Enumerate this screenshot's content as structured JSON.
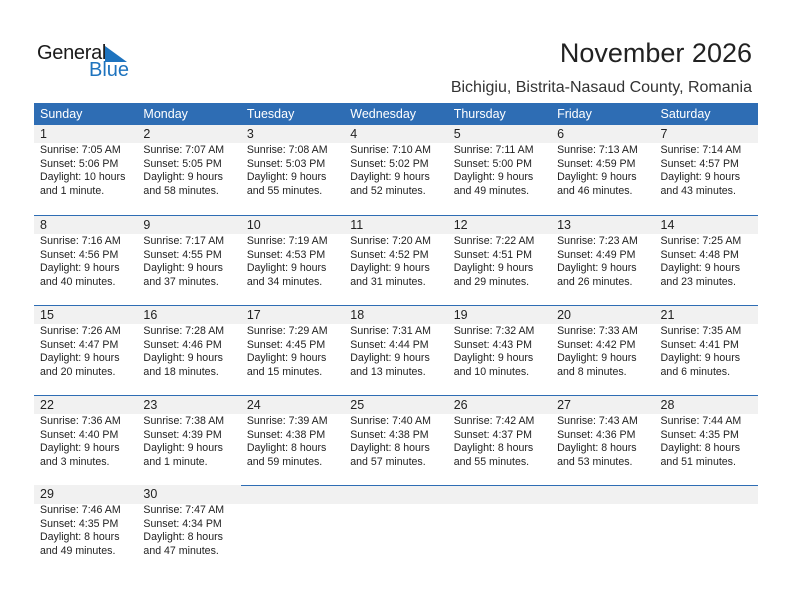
{
  "logo": {
    "text_general": "General",
    "text_blue": "Blue"
  },
  "header": {
    "title": "November 2026",
    "location": "Bichigiu, Bistrita-Nasaud County, Romania"
  },
  "colors": {
    "accent": "#2e6db4",
    "day_band": "#f1f1f1"
  },
  "weekdays": [
    "Sunday",
    "Monday",
    "Tuesday",
    "Wednesday",
    "Thursday",
    "Friday",
    "Saturday"
  ],
  "first_weekday_offset": 0,
  "days": [
    {
      "day": "1",
      "sunrise": "Sunrise: 7:05 AM",
      "sunset": "Sunset: 5:06 PM",
      "daylight1": "Daylight: 10 hours",
      "daylight2": "and 1 minute."
    },
    {
      "day": "2",
      "sunrise": "Sunrise: 7:07 AM",
      "sunset": "Sunset: 5:05 PM",
      "daylight1": "Daylight: 9 hours",
      "daylight2": "and 58 minutes."
    },
    {
      "day": "3",
      "sunrise": "Sunrise: 7:08 AM",
      "sunset": "Sunset: 5:03 PM",
      "daylight1": "Daylight: 9 hours",
      "daylight2": "and 55 minutes."
    },
    {
      "day": "4",
      "sunrise": "Sunrise: 7:10 AM",
      "sunset": "Sunset: 5:02 PM",
      "daylight1": "Daylight: 9 hours",
      "daylight2": "and 52 minutes."
    },
    {
      "day": "5",
      "sunrise": "Sunrise: 7:11 AM",
      "sunset": "Sunset: 5:00 PM",
      "daylight1": "Daylight: 9 hours",
      "daylight2": "and 49 minutes."
    },
    {
      "day": "6",
      "sunrise": "Sunrise: 7:13 AM",
      "sunset": "Sunset: 4:59 PM",
      "daylight1": "Daylight: 9 hours",
      "daylight2": "and 46 minutes."
    },
    {
      "day": "7",
      "sunrise": "Sunrise: 7:14 AM",
      "sunset": "Sunset: 4:57 PM",
      "daylight1": "Daylight: 9 hours",
      "daylight2": "and 43 minutes."
    },
    {
      "day": "8",
      "sunrise": "Sunrise: 7:16 AM",
      "sunset": "Sunset: 4:56 PM",
      "daylight1": "Daylight: 9 hours",
      "daylight2": "and 40 minutes."
    },
    {
      "day": "9",
      "sunrise": "Sunrise: 7:17 AM",
      "sunset": "Sunset: 4:55 PM",
      "daylight1": "Daylight: 9 hours",
      "daylight2": "and 37 minutes."
    },
    {
      "day": "10",
      "sunrise": "Sunrise: 7:19 AM",
      "sunset": "Sunset: 4:53 PM",
      "daylight1": "Daylight: 9 hours",
      "daylight2": "and 34 minutes."
    },
    {
      "day": "11",
      "sunrise": "Sunrise: 7:20 AM",
      "sunset": "Sunset: 4:52 PM",
      "daylight1": "Daylight: 9 hours",
      "daylight2": "and 31 minutes."
    },
    {
      "day": "12",
      "sunrise": "Sunrise: 7:22 AM",
      "sunset": "Sunset: 4:51 PM",
      "daylight1": "Daylight: 9 hours",
      "daylight2": "and 29 minutes."
    },
    {
      "day": "13",
      "sunrise": "Sunrise: 7:23 AM",
      "sunset": "Sunset: 4:49 PM",
      "daylight1": "Daylight: 9 hours",
      "daylight2": "and 26 minutes."
    },
    {
      "day": "14",
      "sunrise": "Sunrise: 7:25 AM",
      "sunset": "Sunset: 4:48 PM",
      "daylight1": "Daylight: 9 hours",
      "daylight2": "and 23 minutes."
    },
    {
      "day": "15",
      "sunrise": "Sunrise: 7:26 AM",
      "sunset": "Sunset: 4:47 PM",
      "daylight1": "Daylight: 9 hours",
      "daylight2": "and 20 minutes."
    },
    {
      "day": "16",
      "sunrise": "Sunrise: 7:28 AM",
      "sunset": "Sunset: 4:46 PM",
      "daylight1": "Daylight: 9 hours",
      "daylight2": "and 18 minutes."
    },
    {
      "day": "17",
      "sunrise": "Sunrise: 7:29 AM",
      "sunset": "Sunset: 4:45 PM",
      "daylight1": "Daylight: 9 hours",
      "daylight2": "and 15 minutes."
    },
    {
      "day": "18",
      "sunrise": "Sunrise: 7:31 AM",
      "sunset": "Sunset: 4:44 PM",
      "daylight1": "Daylight: 9 hours",
      "daylight2": "and 13 minutes."
    },
    {
      "day": "19",
      "sunrise": "Sunrise: 7:32 AM",
      "sunset": "Sunset: 4:43 PM",
      "daylight1": "Daylight: 9 hours",
      "daylight2": "and 10 minutes."
    },
    {
      "day": "20",
      "sunrise": "Sunrise: 7:33 AM",
      "sunset": "Sunset: 4:42 PM",
      "daylight1": "Daylight: 9 hours",
      "daylight2": "and 8 minutes."
    },
    {
      "day": "21",
      "sunrise": "Sunrise: 7:35 AM",
      "sunset": "Sunset: 4:41 PM",
      "daylight1": "Daylight: 9 hours",
      "daylight2": "and 6 minutes."
    },
    {
      "day": "22",
      "sunrise": "Sunrise: 7:36 AM",
      "sunset": "Sunset: 4:40 PM",
      "daylight1": "Daylight: 9 hours",
      "daylight2": "and 3 minutes."
    },
    {
      "day": "23",
      "sunrise": "Sunrise: 7:38 AM",
      "sunset": "Sunset: 4:39 PM",
      "daylight1": "Daylight: 9 hours",
      "daylight2": "and 1 minute."
    },
    {
      "day": "24",
      "sunrise": "Sunrise: 7:39 AM",
      "sunset": "Sunset: 4:38 PM",
      "daylight1": "Daylight: 8 hours",
      "daylight2": "and 59 minutes."
    },
    {
      "day": "25",
      "sunrise": "Sunrise: 7:40 AM",
      "sunset": "Sunset: 4:38 PM",
      "daylight1": "Daylight: 8 hours",
      "daylight2": "and 57 minutes."
    },
    {
      "day": "26",
      "sunrise": "Sunrise: 7:42 AM",
      "sunset": "Sunset: 4:37 PM",
      "daylight1": "Daylight: 8 hours",
      "daylight2": "and 55 minutes."
    },
    {
      "day": "27",
      "sunrise": "Sunrise: 7:43 AM",
      "sunset": "Sunset: 4:36 PM",
      "daylight1": "Daylight: 8 hours",
      "daylight2": "and 53 minutes."
    },
    {
      "day": "28",
      "sunrise": "Sunrise: 7:44 AM",
      "sunset": "Sunset: 4:35 PM",
      "daylight1": "Daylight: 8 hours",
      "daylight2": "and 51 minutes."
    },
    {
      "day": "29",
      "sunrise": "Sunrise: 7:46 AM",
      "sunset": "Sunset: 4:35 PM",
      "daylight1": "Daylight: 8 hours",
      "daylight2": "and 49 minutes."
    },
    {
      "day": "30",
      "sunrise": "Sunrise: 7:47 AM",
      "sunset": "Sunset: 4:34 PM",
      "daylight1": "Daylight: 8 hours",
      "daylight2": "and 47 minutes."
    }
  ]
}
